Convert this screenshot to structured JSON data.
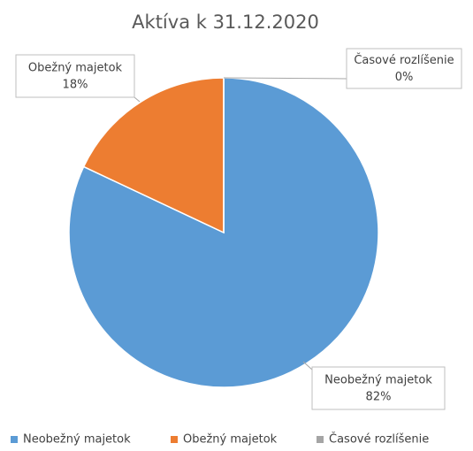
{
  "chart_data": {
    "type": "pie",
    "title": "Aktíva k 31.12.2020",
    "categories": [
      "Neobežný majetok",
      "Obežný majetok",
      "Časové rozlíšenie"
    ],
    "values": [
      82,
      18,
      0
    ],
    "value_labels": [
      "82%",
      "18%",
      "0%"
    ],
    "colors": [
      "#5b9bd5",
      "#ed7d31",
      "#a5a5a5"
    ],
    "legend": "bottom"
  }
}
